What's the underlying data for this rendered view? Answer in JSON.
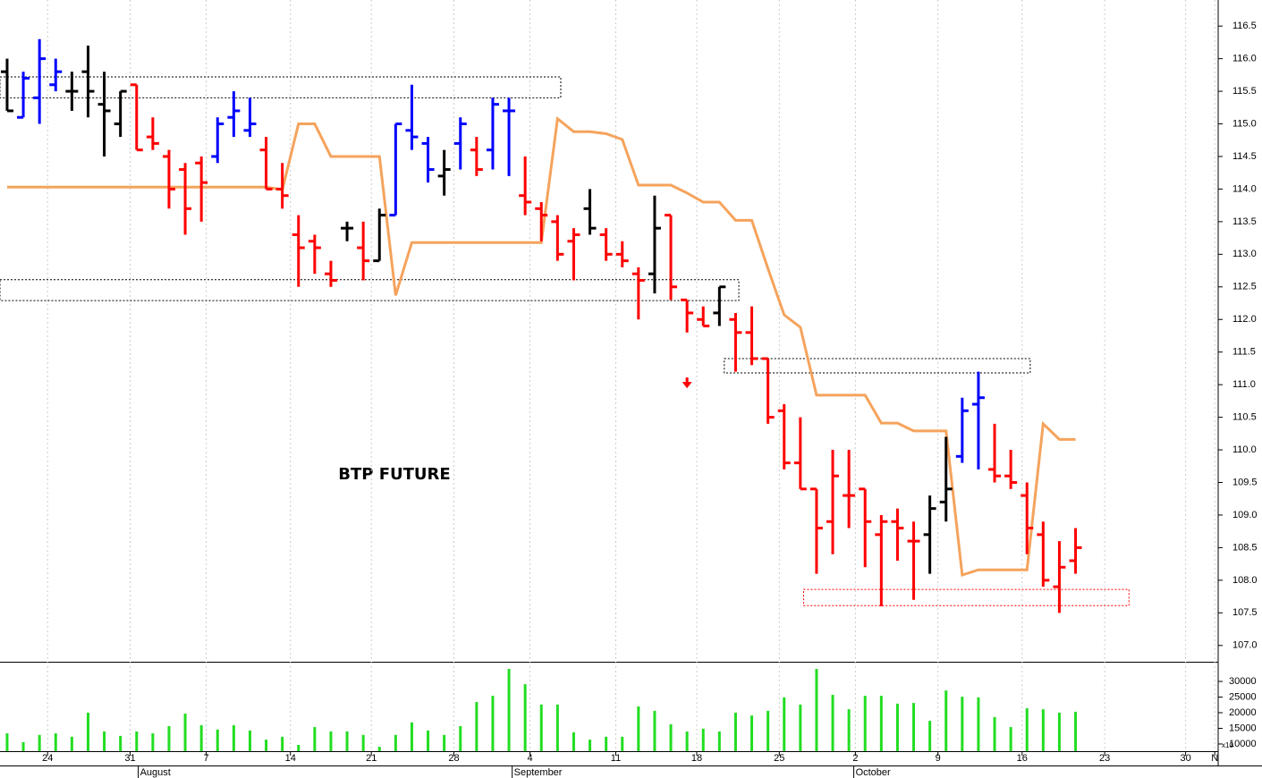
{
  "chart_data": {
    "type": "ohlc",
    "annotation": "BTP FUTURE",
    "y2_unit": "x10",
    "x": [
      0,
      1,
      2,
      3,
      4,
      5,
      6,
      7,
      8,
      9,
      10,
      11,
      12,
      13,
      14,
      15,
      16,
      17,
      18,
      19,
      20,
      21,
      22,
      23,
      24,
      25,
      26,
      27,
      28,
      29,
      30,
      31,
      32,
      33,
      34,
      35,
      36,
      37,
      38,
      39,
      40,
      41,
      42,
      43,
      44,
      45,
      46,
      47,
      48,
      49,
      50,
      51,
      52,
      53,
      54,
      55,
      56,
      57,
      58,
      59,
      60,
      61,
      62,
      63,
      64,
      65,
      66
    ],
    "open": [
      115.8,
      115.1,
      115.4,
      115.6,
      115.5,
      115.8,
      115.3,
      115.0,
      115.6,
      114.8,
      114.5,
      114.3,
      114.4,
      114.5,
      115.1,
      114.9,
      114.6,
      114.0,
      113.3,
      113.2,
      112.7,
      113.4,
      113.1,
      112.9,
      113.6,
      114.9,
      114.7,
      114.2,
      114.7,
      114.6,
      114.6,
      115.2,
      113.9,
      113.7,
      113.5,
      113.2,
      113.7,
      113.3,
      113.0,
      112.7,
      112.7,
      113.6,
      112.3,
      112.0,
      112.1,
      112.0,
      111.8,
      111.4,
      110.6,
      109.8,
      109.4,
      108.9,
      109.3,
      109.4,
      108.7,
      108.9,
      108.6,
      108.7,
      109.2,
      109.9,
      110.7,
      109.7,
      109.6,
      109.3,
      108.7,
      107.9,
      108.3
    ],
    "high": [
      116.0,
      115.8,
      116.3,
      116.0,
      115.8,
      116.2,
      115.8,
      115.5,
      115.6,
      115.1,
      114.6,
      114.4,
      114.5,
      115.1,
      115.5,
      115.4,
      114.8,
      114.4,
      113.6,
      113.3,
      112.9,
      113.5,
      113.5,
      113.7,
      115.0,
      115.6,
      114.8,
      114.6,
      115.1,
      114.8,
      115.4,
      115.4,
      114.5,
      113.8,
      113.6,
      113.4,
      114.0,
      113.4,
      113.2,
      112.8,
      113.9,
      113.6,
      112.3,
      112.2,
      112.5,
      112.1,
      112.2,
      111.4,
      110.7,
      110.5,
      109.4,
      110.0,
      110.0,
      109.4,
      109.0,
      109.1,
      108.9,
      109.3,
      110.2,
      110.8,
      111.2,
      110.4,
      110.0,
      109.5,
      108.9,
      108.6,
      108.8
    ],
    "low": [
      115.2,
      115.1,
      115.0,
      115.5,
      115.2,
      115.1,
      114.5,
      114.8,
      114.6,
      114.6,
      113.7,
      113.3,
      113.5,
      114.4,
      114.8,
      114.8,
      114.0,
      113.7,
      112.5,
      112.7,
      112.5,
      113.2,
      112.6,
      112.9,
      113.6,
      114.6,
      114.1,
      113.9,
      114.3,
      114.2,
      114.3,
      114.2,
      113.6,
      113.2,
      112.9,
      112.6,
      113.3,
      112.9,
      112.8,
      112.0,
      112.4,
      112.3,
      111.8,
      111.9,
      111.9,
      111.2,
      111.3,
      110.4,
      109.7,
      109.4,
      108.1,
      108.4,
      108.8,
      108.2,
      107.6,
      108.3,
      107.7,
      108.1,
      108.9,
      109.8,
      109.7,
      109.5,
      109.4,
      108.4,
      107.9,
      107.5,
      108.1
    ],
    "close": [
      115.2,
      115.7,
      116.0,
      115.8,
      115.5,
      115.5,
      115.2,
      115.5,
      114.6,
      114.7,
      114.0,
      113.7,
      114.1,
      115.0,
      115.2,
      115.0,
      114.0,
      113.9,
      113.1,
      113.1,
      112.6,
      113.4,
      112.9,
      113.6,
      115.0,
      114.8,
      114.3,
      114.3,
      115.0,
      114.3,
      115.3,
      115.2,
      113.8,
      113.6,
      113.0,
      113.3,
      113.4,
      113.0,
      112.9,
      112.6,
      113.4,
      112.5,
      112.1,
      111.9,
      112.5,
      111.8,
      111.4,
      110.5,
      109.8,
      109.4,
      108.8,
      109.6,
      109.3,
      108.9,
      108.9,
      108.8,
      108.6,
      109.1,
      109.4,
      110.6,
      110.8,
      109.6,
      109.5,
      108.8,
      108.0,
      108.2,
      108.5
    ],
    "bar_colors": [
      "black",
      "blue",
      "blue",
      "blue",
      "black",
      "black",
      "black",
      "black",
      "red",
      "red",
      "red",
      "red",
      "red",
      "blue",
      "blue",
      "blue",
      "red",
      "red",
      "red",
      "red",
      "red",
      "black",
      "red",
      "black",
      "blue",
      "blue",
      "blue",
      "black",
      "blue",
      "red",
      "blue",
      "blue",
      "red",
      "red",
      "red",
      "red",
      "black",
      "red",
      "red",
      "red",
      "black",
      "red",
      "red",
      "red",
      "black",
      "red",
      "red",
      "red",
      "red",
      "red",
      "red",
      "red",
      "red",
      "red",
      "red",
      "red",
      "red",
      "black",
      "black",
      "blue",
      "blue",
      "red",
      "red",
      "red",
      "red",
      "red",
      "red"
    ],
    "line": {
      "color": "#f5a35c",
      "values": [
        114.03,
        114.03,
        114.03,
        114.03,
        114.03,
        114.03,
        114.03,
        114.03,
        114.03,
        114.03,
        114.03,
        114.03,
        114.03,
        114.03,
        114.03,
        114.03,
        114.03,
        113.99,
        115.0,
        115.0,
        114.5,
        114.5,
        114.5,
        114.5,
        112.37,
        113.18,
        113.18,
        113.18,
        113.18,
        113.18,
        113.18,
        113.18,
        113.18,
        113.18,
        115.08,
        114.88,
        114.88,
        114.85,
        114.76,
        114.06,
        114.06,
        114.06,
        113.94,
        113.8,
        113.8,
        113.52,
        113.52,
        112.78,
        112.07,
        111.88,
        110.84,
        110.84,
        110.84,
        110.84,
        110.41,
        110.41,
        110.29,
        110.29,
        110.29,
        108.08,
        108.16,
        108.16,
        108.16,
        108.16,
        110.4,
        110.16,
        110.16
      ]
    },
    "volume": {
      "color": "#22dd22",
      "values": [
        13400,
        10600,
        12900,
        13400,
        12300,
        20000,
        14000,
        12600,
        14000,
        13400,
        15700,
        19700,
        16000,
        14600,
        16000,
        14300,
        11400,
        12300,
        9700,
        15400,
        14000,
        14000,
        12900,
        9100,
        12900,
        16900,
        14300,
        12900,
        15700,
        23400,
        25400,
        34000,
        29100,
        22600,
        22600,
        13700,
        11400,
        12300,
        12300,
        22000,
        20600,
        16300,
        14000,
        14900,
        14000,
        20000,
        19100,
        20600,
        24900,
        22600,
        34000,
        25700,
        21100,
        25400,
        25400,
        22900,
        23100,
        17400,
        27100,
        25100,
        24900,
        18600,
        15400,
        21400,
        21100,
        20000,
        20300
      ]
    },
    "zones": [
      {
        "x": [
          -0.44,
          34.2
        ],
        "y": [
          115.4,
          115.72
        ],
        "color": "black"
      },
      {
        "x": [
          -0.44,
          45.2
        ],
        "y": [
          112.29,
          112.61
        ],
        "color": "black"
      },
      {
        "x": [
          44.3,
          63.2
        ],
        "y": [
          111.18,
          111.4
        ],
        "color": "black"
      },
      {
        "x": [
          49.2,
          69.3
        ],
        "y": [
          107.61,
          107.86
        ],
        "color": "red"
      }
    ],
    "signals": [
      {
        "x": 42,
        "y": 111.0,
        "color": "red"
      }
    ],
    "xlim": [
      -0.44,
      74.7
    ],
    "xticks": [
      {
        "value": 2.5,
        "label": "24"
      },
      {
        "value": 7.6,
        "label": "31"
      },
      {
        "value": 12.3,
        "label": "7"
      },
      {
        "value": 17.5,
        "label": "14"
      },
      {
        "value": 22.5,
        "label": "21"
      },
      {
        "value": 27.6,
        "label": "28"
      },
      {
        "value": 32.3,
        "label": "4"
      },
      {
        "value": 37.6,
        "label": "11"
      },
      {
        "value": 42.6,
        "label": "18"
      },
      {
        "value": 47.7,
        "label": "25"
      },
      {
        "value": 52.4,
        "label": "2"
      },
      {
        "value": 57.5,
        "label": "9"
      },
      {
        "value": 62.7,
        "label": "16"
      },
      {
        "value": 67.8,
        "label": "23"
      },
      {
        "value": 72.8,
        "label": "30"
      },
      {
        "value": 74.6,
        "label": "N"
      }
    ],
    "month_ticks": [
      {
        "value": 8.1,
        "label": "August"
      },
      {
        "value": 31.2,
        "label": "September"
      },
      {
        "value": 52.3,
        "label": "October"
      }
    ],
    "ylim": [
      106.75,
      116.9
    ],
    "yticks": [
      {
        "value": 107,
        "label": "107.0"
      },
      {
        "value": 107.5,
        "label": "107.5"
      },
      {
        "value": 108,
        "label": "108.0"
      },
      {
        "value": 108.5,
        "label": "108.5"
      },
      {
        "value": 109,
        "label": "109.0"
      },
      {
        "value": 109.5,
        "label": "109.5"
      },
      {
        "value": 110,
        "label": "110.0"
      },
      {
        "value": 110.5,
        "label": "110.5"
      },
      {
        "value": 111,
        "label": "111.0"
      },
      {
        "value": 111.5,
        "label": "111.5"
      },
      {
        "value": 112,
        "label": "112.0"
      },
      {
        "value": 112.5,
        "label": "112.5"
      },
      {
        "value": 113,
        "label": "113.0"
      },
      {
        "value": 113.5,
        "label": "113.5"
      },
      {
        "value": 114,
        "label": "114.0"
      },
      {
        "value": 114.5,
        "label": "114.5"
      },
      {
        "value": 115,
        "label": "115.0"
      },
      {
        "value": 115.5,
        "label": "115.5"
      },
      {
        "value": 116,
        "label": "116.0"
      },
      {
        "value": 116.5,
        "label": "116.5"
      }
    ],
    "y2lim": [
      7700,
      36000
    ],
    "y2ticks": [
      10000,
      15000,
      20000,
      25000,
      30000
    ],
    "grid": true
  }
}
